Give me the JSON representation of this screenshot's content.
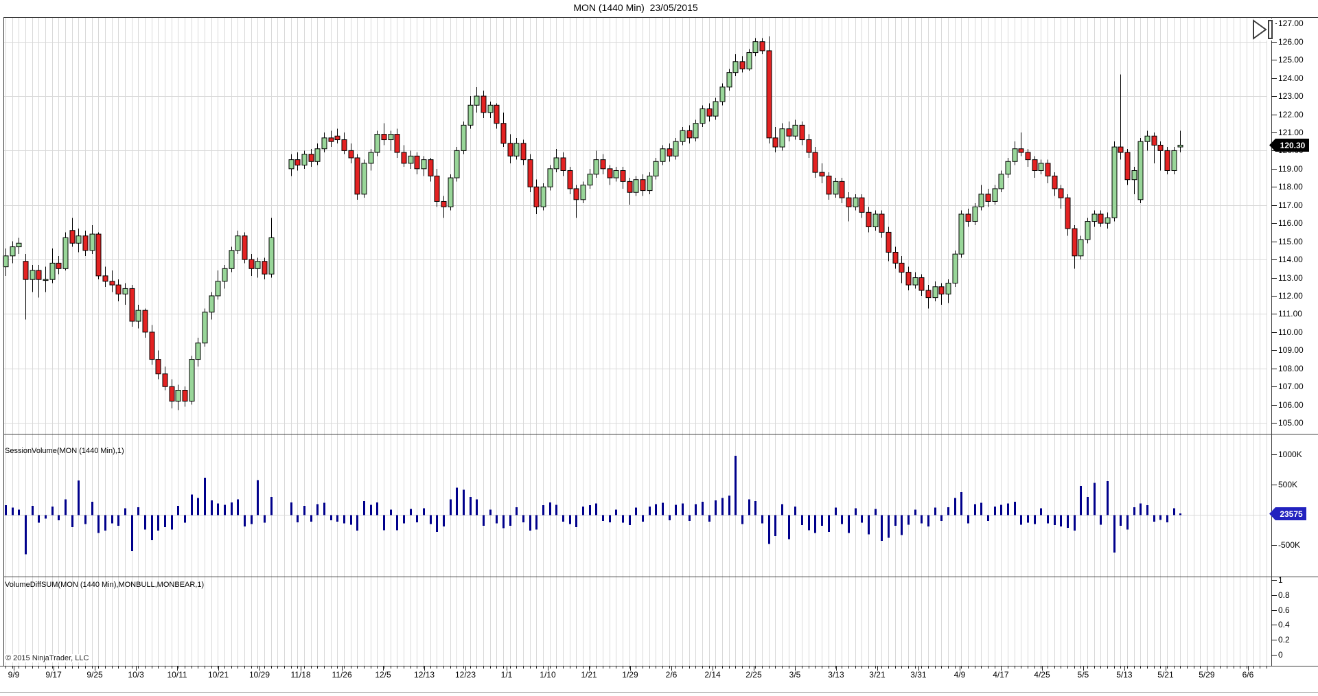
{
  "title": "MON (1440 Min)  23/05/2015",
  "copyright": "© 2015 NinjaTrader, LLC",
  "icons": {
    "top_right": "step-forward-icon"
  },
  "colors": {
    "background": "#ffffff",
    "grid": "#d9d9d9",
    "panel_border": "#3c3c3c",
    "candle_up": "#99d699",
    "candle_down": "#e32222",
    "candle_outline": "#000000",
    "volume_bar": "#00008b",
    "axis_text": "#000000",
    "price_marker_bg": "#000000",
    "price_marker_text": "#ffffff",
    "volume_marker_bg": "#2222bf"
  },
  "panels": {
    "volume": {
      "label": "SessionVolume(MON (1440 Min),1)"
    },
    "indicator": {
      "label": "VolumeDiffSUM(MON (1440 Min),MONBULL,MONBEAR,1)"
    }
  },
  "markers": {
    "price": {
      "value": "120.30",
      "price": 120.3
    },
    "volume": {
      "value": "23575",
      "volume_k": 24
    }
  },
  "chart_data": {
    "type": "candlestick",
    "title": "MON (1440 Min)  23/05/2015",
    "slots": 191,
    "price_panel": {
      "ylim": [
        104.4,
        127.35
      ],
      "yticks": [
        105,
        106,
        107,
        108,
        109,
        110,
        111,
        112,
        113,
        114,
        115,
        116,
        117,
        118,
        119,
        120,
        121,
        122,
        123,
        124,
        125,
        126,
        127
      ],
      "grid_values": [
        105,
        108,
        111,
        114,
        117,
        120,
        123,
        126
      ]
    },
    "volume_panel": {
      "ylim": [
        -1020,
        1345
      ],
      "yticks": [
        {
          "v": 1000,
          "t": "1000K"
        },
        {
          "v": 500,
          "t": "500K"
        },
        {
          "v": -500,
          "t": "-500K"
        }
      ],
      "zero_line": 0
    },
    "indicator_panel": {
      "ylim": [
        -0.15,
        1.05
      ],
      "yticks": [
        {
          "v": 1,
          "t": "1"
        },
        {
          "v": 0.8,
          "t": "0.8"
        },
        {
          "v": 0.6,
          "t": "0.6"
        },
        {
          "v": 0.4,
          "t": "0.4"
        },
        {
          "v": 0.2,
          "t": "0.2"
        },
        {
          "v": 0,
          "t": "0"
        }
      ],
      "series": []
    },
    "x_labels": [
      {
        "t": "9/9",
        "s": 1.24
      },
      {
        "t": "9/17",
        "s": 7.25
      },
      {
        "t": "9/25",
        "s": 13.45
      },
      {
        "t": "10/3",
        "s": 19.66
      },
      {
        "t": "10/11",
        "s": 25.86
      },
      {
        "t": "10/21",
        "s": 32.07
      },
      {
        "t": "10/29",
        "s": 38.27
      },
      {
        "t": "11/18",
        "s": 44.48
      },
      {
        "t": "11/26",
        "s": 50.69
      },
      {
        "t": "12/5",
        "s": 56.89
      },
      {
        "t": "12/13",
        "s": 63.1
      },
      {
        "t": "12/23",
        "s": 69.3
      },
      {
        "t": "1/1",
        "s": 75.51
      },
      {
        "t": "1/10",
        "s": 81.71
      },
      {
        "t": "1/21",
        "s": 87.92
      },
      {
        "t": "1/29",
        "s": 94.12
      },
      {
        "t": "2/6",
        "s": 100.33
      },
      {
        "t": "2/14",
        "s": 106.54
      },
      {
        "t": "2/25",
        "s": 112.74
      },
      {
        "t": "3/5",
        "s": 118.95
      },
      {
        "t": "3/13",
        "s": 125.15
      },
      {
        "t": "3/21",
        "s": 131.36
      },
      {
        "t": "3/31",
        "s": 137.56
      },
      {
        "t": "4/9",
        "s": 143.77
      },
      {
        "t": "4/17",
        "s": 149.97
      },
      {
        "t": "4/25",
        "s": 156.18
      },
      {
        "t": "5/5",
        "s": 162.38
      },
      {
        "t": "5/13",
        "s": 168.59
      },
      {
        "t": "5/21",
        "s": 174.8
      },
      {
        "t": "5/29",
        "s": 181.0
      },
      {
        "t": "6/6",
        "s": 187.21
      }
    ],
    "bars_format": [
      "open",
      "high",
      "low",
      "close",
      "signed_volume_K"
    ],
    "bars": [
      [
        113.6,
        114.6,
        113.1,
        114.2,
        160
      ],
      [
        114.2,
        115.0,
        113.8,
        114.7,
        120
      ],
      [
        114.7,
        115.2,
        114.3,
        114.9,
        90
      ],
      [
        113.9,
        114.3,
        110.7,
        112.9,
        -650
      ],
      [
        112.9,
        113.7,
        112.2,
        113.4,
        150
      ],
      [
        113.4,
        113.7,
        111.9,
        112.9,
        -130
      ],
      [
        112.9,
        113.6,
        112.2,
        112.9,
        -60
      ],
      [
        112.9,
        114.6,
        112.7,
        113.8,
        140
      ],
      [
        113.8,
        114.2,
        113.2,
        113.5,
        -90
      ],
      [
        113.5,
        115.5,
        113.4,
        115.2,
        260
      ],
      [
        115.6,
        116.3,
        114.7,
        114.9,
        -200
      ],
      [
        114.9,
        115.7,
        114.4,
        115.3,
        570
      ],
      [
        115.3,
        115.6,
        114.2,
        114.5,
        -150
      ],
      [
        114.5,
        115.9,
        114.3,
        115.4,
        220
      ],
      [
        115.4,
        115.5,
        112.9,
        113.1,
        -300
      ],
      [
        113.1,
        113.6,
        112.5,
        112.8,
        -260
      ],
      [
        112.8,
        113.4,
        112.2,
        112.6,
        -140
      ],
      [
        112.6,
        112.9,
        111.7,
        112.1,
        -180
      ],
      [
        112.1,
        112.7,
        111.5,
        112.4,
        110
      ],
      [
        112.4,
        112.6,
        110.3,
        110.6,
        -600
      ],
      [
        110.6,
        111.5,
        110.2,
        111.2,
        130
      ],
      [
        111.2,
        111.3,
        109.7,
        110.0,
        -240
      ],
      [
        110.0,
        110.4,
        108.2,
        108.5,
        -420
      ],
      [
        108.5,
        109.0,
        107.4,
        107.7,
        -260
      ],
      [
        107.7,
        108.1,
        106.8,
        107.0,
        -200
      ],
      [
        107.0,
        107.4,
        105.8,
        106.2,
        -240
      ],
      [
        106.2,
        107.1,
        105.7,
        106.8,
        150
      ],
      [
        106.8,
        107.0,
        105.9,
        106.2,
        -130
      ],
      [
        106.2,
        108.7,
        106.0,
        108.5,
        340
      ],
      [
        108.5,
        109.7,
        108.1,
        109.4,
        280
      ],
      [
        109.4,
        111.3,
        109.2,
        111.1,
        620
      ],
      [
        111.1,
        112.2,
        110.7,
        112.0,
        240
      ],
      [
        112.0,
        113.4,
        111.8,
        112.8,
        190
      ],
      [
        112.8,
        113.7,
        112.4,
        113.5,
        170
      ],
      [
        113.5,
        114.7,
        113.3,
        114.5,
        210
      ],
      [
        114.5,
        115.6,
        114.3,
        115.3,
        260
      ],
      [
        115.3,
        115.5,
        113.8,
        114.0,
        -190
      ],
      [
        114.0,
        114.3,
        113.1,
        113.5,
        -150
      ],
      [
        113.5,
        114.1,
        113.0,
        113.9,
        580
      ],
      [
        113.9,
        114.1,
        112.9,
        113.2,
        -130
      ],
      [
        113.2,
        116.3,
        113.0,
        115.2,
        300
      ],
      null,
      null,
      [
        119.0,
        119.8,
        118.6,
        119.5,
        210
      ],
      [
        119.5,
        119.9,
        118.9,
        119.2,
        -120
      ],
      [
        119.2,
        120.0,
        119.0,
        119.8,
        150
      ],
      [
        119.8,
        120.1,
        119.1,
        119.4,
        -110
      ],
      [
        119.4,
        120.4,
        119.2,
        120.1,
        180
      ],
      [
        120.1,
        121.0,
        119.9,
        120.7,
        200
      ],
      [
        120.7,
        121.1,
        120.2,
        120.5,
        -90
      ],
      [
        120.8,
        121.2,
        120.4,
        120.6,
        -110
      ],
      [
        120.6,
        121.0,
        119.8,
        120.0,
        -140
      ],
      [
        120.0,
        120.4,
        119.3,
        119.6,
        -160
      ],
      [
        119.6,
        119.8,
        117.3,
        117.6,
        -260
      ],
      [
        117.6,
        119.5,
        117.4,
        119.3,
        230
      ],
      [
        119.3,
        120.1,
        118.9,
        119.9,
        170
      ],
      [
        119.9,
        121.1,
        119.7,
        120.9,
        210
      ],
      [
        120.9,
        121.5,
        120.3,
        120.6,
        -250
      ],
      [
        120.6,
        121.1,
        120.0,
        120.9,
        90
      ],
      [
        120.9,
        121.2,
        119.6,
        119.9,
        -250
      ],
      [
        119.9,
        120.3,
        119.1,
        119.3,
        -140
      ],
      [
        119.3,
        120.0,
        119.0,
        119.7,
        100
      ],
      [
        119.7,
        119.9,
        118.7,
        119.0,
        -120
      ],
      [
        119.0,
        119.7,
        118.6,
        119.5,
        110
      ],
      [
        119.5,
        119.6,
        118.3,
        118.6,
        -150
      ],
      [
        118.6,
        119.0,
        116.9,
        117.2,
        -280
      ],
      [
        117.2,
        117.5,
        116.3,
        116.9,
        -190
      ],
      [
        116.9,
        118.7,
        116.7,
        118.5,
        260
      ],
      [
        118.5,
        120.2,
        118.3,
        120.0,
        450
      ],
      [
        120.0,
        121.6,
        119.8,
        121.4,
        420
      ],
      [
        121.4,
        123.0,
        121.2,
        122.5,
        300
      ],
      [
        122.5,
        123.5,
        122.1,
        123.0,
        260
      ],
      [
        123.0,
        123.3,
        121.8,
        122.1,
        -180
      ],
      [
        122.1,
        122.7,
        121.8,
        122.5,
        90
      ],
      [
        122.5,
        122.6,
        121.2,
        121.5,
        -140
      ],
      [
        121.5,
        122.1,
        120.2,
        120.4,
        -220
      ],
      [
        120.4,
        120.9,
        119.3,
        119.7,
        -180
      ],
      [
        119.7,
        120.7,
        119.5,
        120.4,
        130
      ],
      [
        120.4,
        120.6,
        119.2,
        119.5,
        -120
      ],
      [
        119.5,
        119.8,
        117.7,
        118.0,
        -260
      ],
      [
        118.0,
        118.4,
        116.5,
        116.9,
        -240
      ],
      [
        116.9,
        118.2,
        116.7,
        118.0,
        160
      ],
      [
        118.0,
        119.2,
        117.8,
        119.0,
        210
      ],
      [
        119.0,
        120.1,
        118.8,
        119.6,
        170
      ],
      [
        119.6,
        119.9,
        118.6,
        118.9,
        -110
      ],
      [
        118.9,
        119.1,
        117.6,
        117.9,
        -150
      ],
      [
        117.9,
        118.1,
        116.3,
        117.3,
        -200
      ],
      [
        117.3,
        118.3,
        117.1,
        118.1,
        140
      ],
      [
        118.1,
        119.0,
        117.9,
        118.7,
        160
      ],
      [
        118.7,
        120.0,
        118.5,
        119.5,
        190
      ],
      [
        119.5,
        119.8,
        118.7,
        119.0,
        -100
      ],
      [
        119.0,
        119.2,
        118.1,
        118.5,
        -120
      ],
      [
        118.5,
        119.1,
        118.3,
        118.9,
        90
      ],
      [
        118.9,
        119.1,
        117.9,
        118.3,
        -130
      ],
      [
        118.3,
        118.5,
        117.0,
        117.7,
        -170
      ],
      [
        117.7,
        118.6,
        117.5,
        118.4,
        120
      ],
      [
        118.4,
        118.7,
        117.5,
        117.8,
        -110
      ],
      [
        117.8,
        118.8,
        117.6,
        118.6,
        140
      ],
      [
        118.6,
        119.6,
        118.4,
        119.4,
        180
      ],
      [
        119.4,
        120.3,
        119.2,
        120.1,
        200
      ],
      [
        120.1,
        120.4,
        119.4,
        119.7,
        -90
      ],
      [
        119.7,
        120.7,
        119.5,
        120.5,
        170
      ],
      [
        120.5,
        121.3,
        120.3,
        121.1,
        190
      ],
      [
        121.1,
        121.4,
        120.4,
        120.7,
        -100
      ],
      [
        120.7,
        121.7,
        120.5,
        121.5,
        180
      ],
      [
        121.5,
        122.5,
        121.3,
        122.3,
        220
      ],
      [
        122.3,
        122.6,
        121.6,
        121.9,
        -110
      ],
      [
        121.9,
        122.9,
        121.7,
        122.7,
        240
      ],
      [
        122.7,
        123.7,
        122.5,
        123.5,
        280
      ],
      [
        123.5,
        124.5,
        123.3,
        124.3,
        320
      ],
      [
        124.3,
        125.3,
        124.1,
        124.9,
        980
      ],
      [
        124.9,
        125.2,
        124.3,
        124.5,
        -150
      ],
      [
        124.5,
        125.6,
        124.4,
        125.4,
        260
      ],
      [
        125.4,
        126.2,
        125.2,
        126.0,
        230
      ],
      [
        126.0,
        126.2,
        125.3,
        125.5,
        -140
      ],
      [
        125.5,
        126.3,
        120.4,
        120.7,
        -480
      ],
      [
        120.7,
        121.3,
        119.9,
        120.2,
        -350
      ],
      [
        120.2,
        121.5,
        120.0,
        121.2,
        180
      ],
      [
        121.2,
        121.6,
        120.5,
        120.8,
        -400
      ],
      [
        120.8,
        121.7,
        120.6,
        121.4,
        140
      ],
      [
        121.4,
        121.6,
        120.3,
        120.6,
        -170
      ],
      [
        120.6,
        120.9,
        119.6,
        119.9,
        -250
      ],
      [
        119.9,
        120.2,
        118.5,
        118.8,
        -300
      ],
      [
        118.8,
        119.3,
        118.2,
        118.6,
        -180
      ],
      [
        118.6,
        118.8,
        117.3,
        117.6,
        -280
      ],
      [
        117.6,
        118.5,
        117.4,
        118.3,
        120
      ],
      [
        118.3,
        118.5,
        117.1,
        117.4,
        -150
      ],
      [
        117.4,
        117.7,
        116.1,
        116.9,
        -300
      ],
      [
        116.9,
        117.6,
        116.7,
        117.4,
        110
      ],
      [
        117.4,
        117.6,
        116.3,
        116.6,
        -130
      ],
      [
        116.6,
        116.9,
        115.5,
        115.8,
        -320
      ],
      [
        115.8,
        116.7,
        115.6,
        116.5,
        100
      ],
      [
        116.5,
        116.7,
        115.2,
        115.5,
        -430
      ],
      [
        115.5,
        115.8,
        113.9,
        114.4,
        -380
      ],
      [
        114.4,
        114.7,
        113.5,
        113.8,
        -180
      ],
      [
        113.8,
        114.2,
        112.7,
        113.3,
        -330
      ],
      [
        113.3,
        113.6,
        112.3,
        112.6,
        -160
      ],
      [
        112.6,
        113.3,
        112.4,
        113.0,
        90
      ],
      [
        113.0,
        113.2,
        112.0,
        112.3,
        -140
      ],
      [
        112.3,
        112.6,
        111.3,
        111.9,
        -190
      ],
      [
        111.9,
        112.8,
        111.7,
        112.5,
        120
      ],
      [
        112.5,
        112.7,
        111.5,
        112.1,
        -100
      ],
      [
        112.1,
        112.9,
        111.6,
        112.7,
        130
      ],
      [
        112.7,
        114.5,
        112.5,
        114.3,
        280
      ],
      [
        114.3,
        116.7,
        114.1,
        116.5,
        380
      ],
      [
        116.5,
        116.8,
        115.8,
        116.1,
        -140
      ],
      [
        116.1,
        117.1,
        115.9,
        116.9,
        180
      ],
      [
        116.9,
        118.1,
        116.7,
        117.6,
        200
      ],
      [
        117.6,
        117.9,
        116.9,
        117.2,
        -100
      ],
      [
        117.2,
        118.1,
        117.0,
        117.9,
        140
      ],
      [
        117.9,
        118.9,
        117.7,
        118.7,
        170
      ],
      [
        118.7,
        119.6,
        118.5,
        119.4,
        190
      ],
      [
        119.4,
        120.5,
        119.2,
        120.1,
        220
      ],
      [
        120.1,
        121.0,
        119.7,
        119.9,
        -160
      ],
      [
        119.9,
        120.1,
        119.1,
        119.5,
        -130
      ],
      [
        119.5,
        119.7,
        118.5,
        118.9,
        -150
      ],
      [
        118.9,
        119.5,
        118.7,
        119.3,
        110
      ],
      [
        119.3,
        119.5,
        118.2,
        118.6,
        -140
      ],
      [
        118.6,
        118.8,
        117.5,
        117.9,
        -170
      ],
      [
        117.9,
        118.1,
        116.8,
        117.4,
        -190
      ],
      [
        117.4,
        117.6,
        115.3,
        115.7,
        -210
      ],
      [
        115.7,
        115.9,
        113.5,
        114.2,
        -260
      ],
      [
        114.2,
        115.3,
        114.0,
        115.1,
        480
      ],
      [
        115.1,
        116.3,
        114.9,
        116.1,
        300
      ],
      [
        116.1,
        116.7,
        115.8,
        116.5,
        530
      ],
      [
        116.5,
        116.7,
        115.8,
        116.0,
        -160
      ],
      [
        116.0,
        116.6,
        115.7,
        116.3,
        560
      ],
      [
        116.3,
        120.5,
        116.1,
        120.2,
        -620
      ],
      [
        120.2,
        124.2,
        119.5,
        119.9,
        -180
      ],
      [
        119.9,
        120.1,
        118.1,
        118.4,
        -240
      ],
      [
        118.4,
        119.1,
        117.6,
        118.9,
        130
      ],
      [
        117.3,
        120.7,
        117.1,
        120.5,
        190
      ],
      [
        120.5,
        121.1,
        120.0,
        120.8,
        160
      ],
      [
        120.8,
        121.0,
        119.3,
        120.3,
        -110
      ],
      [
        120.3,
        120.5,
        118.9,
        120.0,
        -80
      ],
      [
        120.0,
        120.2,
        118.7,
        118.9,
        -120
      ],
      [
        118.9,
        120.2,
        118.7,
        120.0,
        110
      ],
      [
        120.2,
        121.1,
        119.9,
        120.3,
        24
      ]
    ]
  }
}
